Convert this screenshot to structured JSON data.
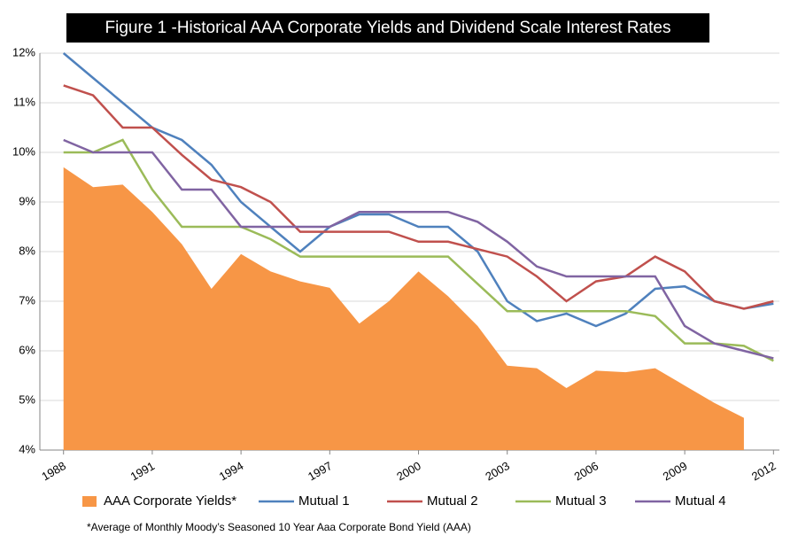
{
  "chart_data": {
    "type": "line",
    "title": "Figure 1 -Historical AAA Corporate Yields and Dividend Scale Interest Rates",
    "footnote": "*Average of Monthly Moody’s Seasoned 10 Year Aaa Corporate Bond Yield (AAA)",
    "x": [
      1988,
      1989,
      1990,
      1991,
      1992,
      1993,
      1994,
      1995,
      1996,
      1997,
      1998,
      1999,
      2000,
      2001,
      2002,
      2003,
      2004,
      2005,
      2006,
      2007,
      2008,
      2009,
      2010,
      2011,
      2012
    ],
    "xlim": [
      1987.2,
      2012.2
    ],
    "xticks": [
      1988,
      1991,
      1994,
      1997,
      2000,
      2003,
      2006,
      2009,
      2012
    ],
    "ylim": [
      4,
      12
    ],
    "yticks": [
      {
        "value": 4,
        "label": "4%"
      },
      {
        "value": 5,
        "label": "5%"
      },
      {
        "value": 6,
        "label": "6%"
      },
      {
        "value": 7,
        "label": "7%"
      },
      {
        "value": 8,
        "label": "8%"
      },
      {
        "value": 9,
        "label": "9%"
      },
      {
        "value": 10,
        "label": "10%"
      },
      {
        "value": 11,
        "label": "11%"
      },
      {
        "value": 12,
        "label": "12%"
      }
    ],
    "grid": true,
    "legend": "bottom",
    "series": [
      {
        "name": "AAA Corporate Yields*",
        "type": "area",
        "color": "#f79646",
        "values": [
          9.7,
          9.3,
          9.35,
          8.8,
          8.15,
          7.25,
          7.95,
          7.6,
          7.4,
          7.27,
          6.55,
          7.0,
          7.6,
          7.1,
          6.5,
          5.7,
          5.65,
          5.25,
          5.6,
          5.57,
          5.65,
          5.3,
          4.95,
          4.65,
          null
        ]
      },
      {
        "name": "Mutual 1",
        "type": "line",
        "color": "#4f81bd",
        "values": [
          12.0,
          11.5,
          11.0,
          10.5,
          10.25,
          9.75,
          9.0,
          8.5,
          8.0,
          8.5,
          8.75,
          8.75,
          8.5,
          8.5,
          8.0,
          7.0,
          6.6,
          6.75,
          6.5,
          6.75,
          7.25,
          7.3,
          7.0,
          6.85,
          6.95
        ]
      },
      {
        "name": "Mutual 2",
        "type": "line",
        "color": "#c0504d",
        "values": [
          11.35,
          11.15,
          10.5,
          10.5,
          9.95,
          9.45,
          9.3,
          9.0,
          8.4,
          8.4,
          8.4,
          8.4,
          8.2,
          8.2,
          8.05,
          7.9,
          7.5,
          7.0,
          7.4,
          7.5,
          7.9,
          7.6,
          7.0,
          6.85,
          7.0
        ]
      },
      {
        "name": "Mutual 3",
        "type": "line",
        "color": "#9bbb59",
        "values": [
          10.0,
          10.0,
          10.25,
          9.25,
          8.5,
          8.5,
          8.5,
          8.25,
          7.9,
          7.9,
          7.9,
          7.9,
          7.9,
          7.9,
          7.35,
          6.8,
          6.8,
          6.8,
          6.8,
          6.8,
          6.7,
          6.15,
          6.15,
          6.1,
          5.8
        ]
      },
      {
        "name": "Mutual 4",
        "type": "line",
        "color": "#8064a2",
        "values": [
          10.25,
          10.0,
          10.0,
          10.0,
          9.25,
          9.25,
          8.5,
          8.5,
          8.5,
          8.5,
          8.8,
          8.8,
          8.8,
          8.8,
          8.6,
          8.2,
          7.7,
          7.5,
          7.5,
          7.5,
          7.5,
          6.5,
          6.15,
          6.0,
          5.85
        ]
      }
    ]
  }
}
